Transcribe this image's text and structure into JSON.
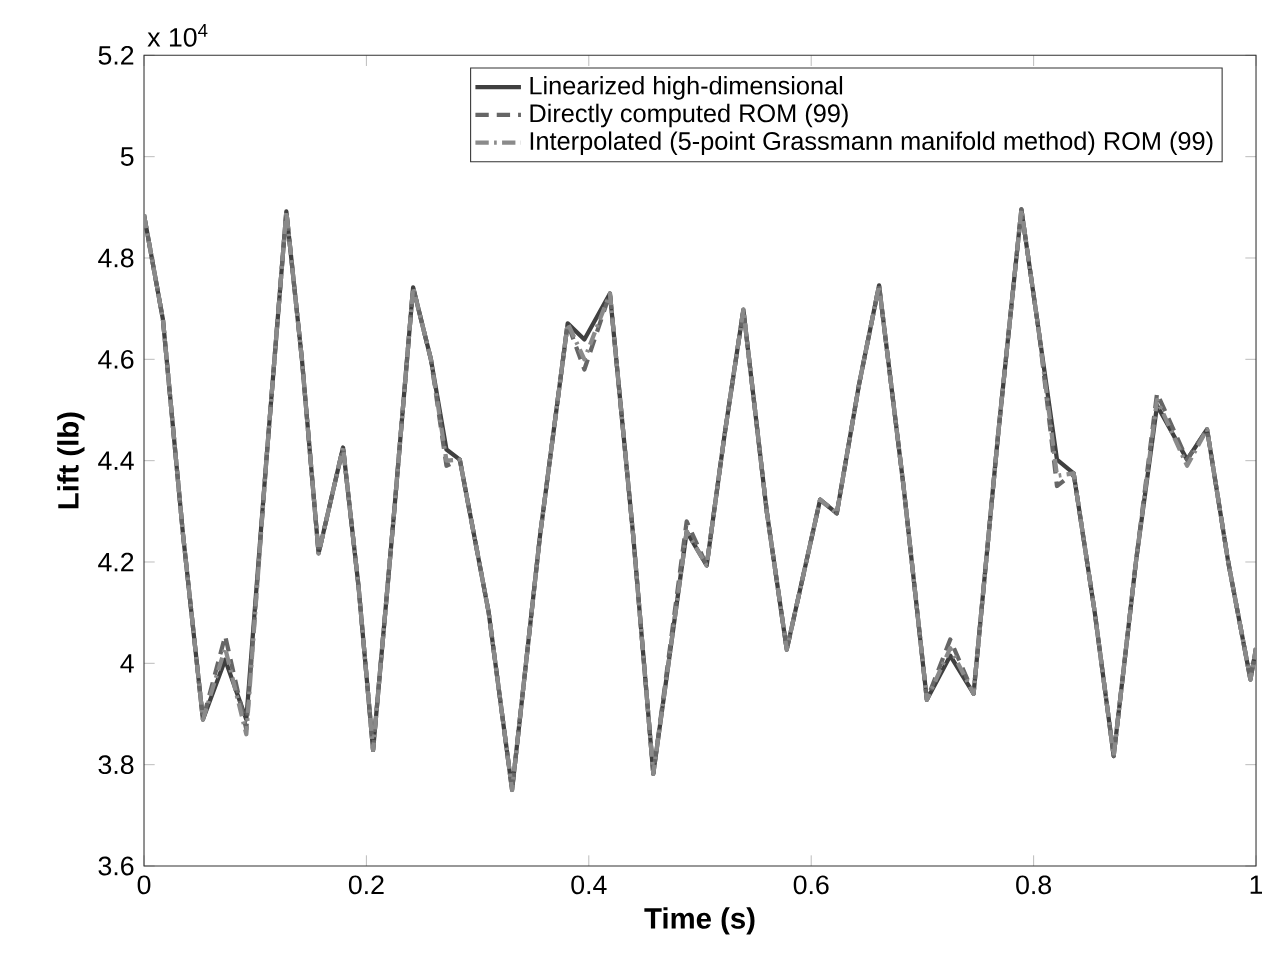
{
  "chart_data": {
    "type": "line",
    "xlabel": "Time (s)",
    "ylabel": "Lift (lb)",
    "annotations": [
      "x 10$^{4}$"
    ],
    "x": [
      0,
      0.017,
      0.035,
      0.053,
      0.073,
      0.092,
      0.11,
      0.128,
      0.142,
      0.157,
      0.179,
      0.193,
      0.206,
      0.225,
      0.242,
      0.258,
      0.272,
      0.284,
      0.31,
      0.331,
      0.356,
      0.381,
      0.396,
      0.419,
      0.44,
      0.458,
      0.488,
      0.506,
      0.522,
      0.539,
      0.56,
      0.578,
      0.608,
      0.623,
      0.643,
      0.661,
      0.683,
      0.704,
      0.725,
      0.746,
      0.768,
      0.789,
      0.805,
      0.821,
      0.836,
      0.855,
      0.872,
      0.892,
      0.911,
      0.938,
      0.956,
      0.975,
      0.995,
      1.0
    ],
    "series": [
      {
        "name": "Linearized high-dimensional",
        "color": "#404040",
        "line_style": "solid",
        "values": [
          4.885,
          4.679,
          4.256,
          3.889,
          4.007,
          3.889,
          4.4,
          4.892,
          4.6,
          4.217,
          4.426,
          4.15,
          3.829,
          4.3,
          4.742,
          4.6,
          4.422,
          4.402,
          4.1,
          3.75,
          4.25,
          4.671,
          4.639,
          4.73,
          4.25,
          3.782,
          4.26,
          4.193,
          4.45,
          4.698,
          4.3,
          4.027,
          4.323,
          4.296,
          4.55,
          4.746,
          4.35,
          3.928,
          4.015,
          3.94,
          4.45,
          4.896,
          4.65,
          4.402,
          4.375,
          4.1,
          3.817,
          4.2,
          4.509,
          4.402,
          4.462,
          4.2,
          3.968,
          4.03
        ]
      },
      {
        "name": "Directly computed ROM (99)",
        "color": "#666666",
        "line_style": "dashed",
        "values": [
          4.885,
          4.679,
          4.256,
          3.889,
          4.054,
          3.87,
          4.4,
          4.892,
          4.6,
          4.217,
          4.426,
          4.15,
          3.829,
          4.3,
          4.742,
          4.6,
          4.39,
          4.402,
          4.1,
          3.75,
          4.25,
          4.671,
          4.58,
          4.73,
          4.25,
          3.782,
          4.28,
          4.193,
          4.45,
          4.698,
          4.3,
          4.027,
          4.323,
          4.296,
          4.55,
          4.746,
          4.35,
          3.928,
          4.047,
          3.94,
          4.45,
          4.896,
          4.65,
          4.35,
          4.375,
          4.1,
          3.817,
          4.2,
          4.533,
          4.402,
          4.462,
          4.2,
          3.968,
          4.03
        ]
      },
      {
        "name": "Interpolated (5-point Grassmann manifold method) ROM (99)",
        "color": "#8a8a8a",
        "line_style": "dashdotted",
        "values": [
          4.885,
          4.679,
          4.256,
          3.889,
          4.03,
          3.86,
          4.4,
          4.892,
          4.6,
          4.217,
          4.426,
          4.15,
          3.829,
          4.3,
          4.742,
          4.6,
          4.4,
          4.402,
          4.1,
          3.75,
          4.25,
          4.671,
          4.6,
          4.73,
          4.25,
          3.782,
          4.26,
          4.193,
          4.45,
          4.698,
          4.3,
          4.027,
          4.323,
          4.296,
          4.55,
          4.746,
          4.35,
          3.928,
          4.03,
          3.94,
          4.45,
          4.896,
          4.65,
          4.37,
          4.375,
          4.1,
          3.817,
          4.2,
          4.52,
          4.39,
          4.462,
          4.2,
          3.968,
          4.03
        ]
      }
    ],
    "xlim": [
      0,
      1
    ],
    "ylim": [
      3.6,
      5.2
    ],
    "xticks": [
      0,
      0.2,
      0.4,
      0.6,
      0.8,
      1
    ],
    "yticks": [
      3.6,
      3.8,
      4,
      4.2,
      4.4,
      4.6,
      4.8,
      5,
      5.2
    ],
    "legend": "top right",
    "grid": false,
    "marker": "none"
  }
}
